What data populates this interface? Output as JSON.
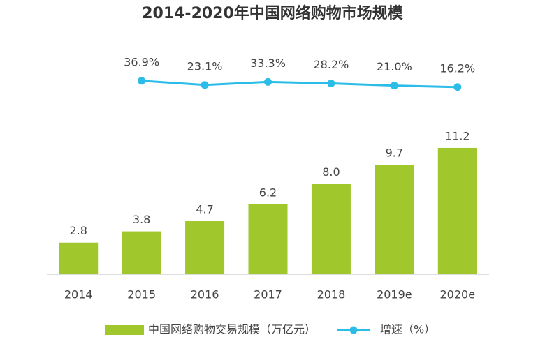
{
  "chart_data": {
    "type": "bar",
    "title": "2014-2020年中国网络购物市场规模",
    "categories": [
      "2014",
      "2015",
      "2016",
      "2017",
      "2018",
      "2019e",
      "2020e"
    ],
    "ylim": [
      0,
      20.6
    ],
    "y2lim": [
      -600,
      165
    ],
    "legend": "bottom",
    "series": [
      {
        "name": "中国网络购物交易规模（万亿元）",
        "type": "bar",
        "color": "#a0c82c",
        "values": [
          2.8,
          3.8,
          4.7,
          6.2,
          8.0,
          9.7,
          11.2
        ],
        "value_labels": [
          "2.8",
          "3.8",
          "4.7",
          "6.2",
          "8.0",
          "9.7",
          "11.2"
        ]
      },
      {
        "name": "增速（%）",
        "type": "line",
        "axis": "y2",
        "color": "#2bbde8",
        "values": [
          null,
          36.9,
          23.1,
          33.3,
          28.2,
          21.0,
          16.2
        ],
        "value_labels": [
          null,
          "36.9%",
          "23.1%",
          "33.3%",
          "28.2%",
          "21.0%",
          "16.2%"
        ]
      }
    ]
  }
}
